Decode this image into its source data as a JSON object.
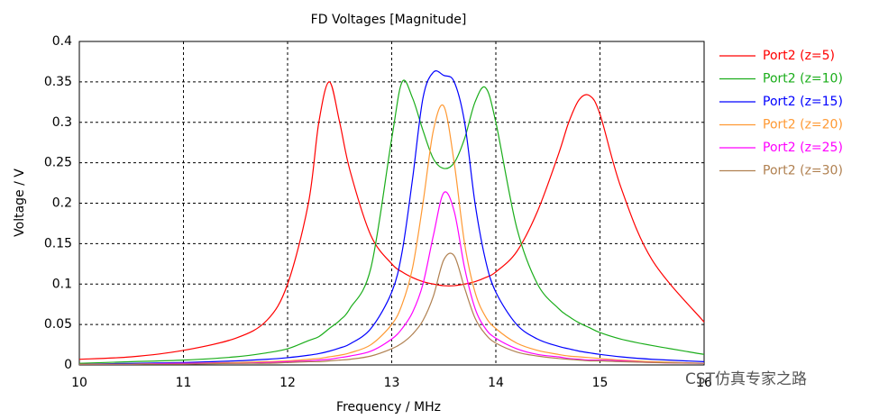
{
  "chart_data": {
    "type": "line",
    "title": "FD Voltages [Magnitude]",
    "xlabel": "Frequency / MHz",
    "ylabel": "Voltage / V",
    "x": [
      10,
      10.5,
      11,
      11.5,
      11.8,
      12,
      12.2,
      12.3,
      12.4,
      12.5,
      12.6,
      12.8,
      13,
      13.1,
      13.2,
      13.3,
      13.4,
      13.5,
      13.6,
      13.7,
      13.8,
      13.9,
      14,
      14.2,
      14.4,
      14.6,
      14.7,
      14.8,
      14.9,
      15,
      15.2,
      15.5,
      16
    ],
    "series": [
      {
        "name": "Port2 (z=5)",
        "color": "#ff0000",
        "values": [
          0.007,
          0.01,
          0.018,
          0.033,
          0.055,
          0.1,
          0.2,
          0.3,
          0.35,
          0.3,
          0.24,
          0.16,
          0.125,
          0.115,
          0.108,
          0.103,
          0.1,
          0.098,
          0.098,
          0.1,
          0.103,
          0.108,
          0.115,
          0.14,
          0.19,
          0.26,
          0.3,
          0.328,
          0.333,
          0.31,
          0.22,
          0.13,
          0.053
        ]
      },
      {
        "name": "Port2 (z=10)",
        "color": "#1aad1a",
        "values": [
          0.002,
          0.004,
          0.006,
          0.01,
          0.015,
          0.02,
          0.03,
          0.035,
          0.045,
          0.055,
          0.07,
          0.12,
          0.28,
          0.35,
          0.33,
          0.29,
          0.255,
          0.243,
          0.25,
          0.28,
          0.325,
          0.343,
          0.3,
          0.17,
          0.1,
          0.07,
          0.06,
          0.052,
          0.046,
          0.04,
          0.032,
          0.024,
          0.013
        ]
      },
      {
        "name": "Port2 (z=15)",
        "color": "#0000ff",
        "values": [
          0.001,
          0.002,
          0.003,
          0.005,
          0.007,
          0.009,
          0.012,
          0.014,
          0.017,
          0.021,
          0.026,
          0.045,
          0.09,
          0.14,
          0.23,
          0.33,
          0.362,
          0.358,
          0.35,
          0.3,
          0.2,
          0.13,
          0.09,
          0.05,
          0.032,
          0.023,
          0.02,
          0.017,
          0.015,
          0.013,
          0.01,
          0.007,
          0.004
        ]
      },
      {
        "name": "Port2 (z=20)",
        "color": "#ff9933",
        "values": [
          0.001,
          0.001,
          0.002,
          0.003,
          0.004,
          0.005,
          0.007,
          0.008,
          0.01,
          0.012,
          0.015,
          0.025,
          0.05,
          0.075,
          0.12,
          0.2,
          0.29,
          0.32,
          0.25,
          0.15,
          0.09,
          0.06,
          0.045,
          0.027,
          0.018,
          0.013,
          0.011,
          0.01,
          0.009,
          0.008,
          0.006,
          0.004,
          0.002
        ]
      },
      {
        "name": "Port2 (z=25)",
        "color": "#ff00ff",
        "values": [
          0.001,
          0.001,
          0.002,
          0.002,
          0.003,
          0.004,
          0.005,
          0.006,
          0.007,
          0.009,
          0.011,
          0.017,
          0.032,
          0.045,
          0.065,
          0.1,
          0.16,
          0.213,
          0.19,
          0.12,
          0.07,
          0.045,
          0.033,
          0.02,
          0.013,
          0.01,
          0.008,
          0.007,
          0.006,
          0.006,
          0.005,
          0.003,
          0.002
        ]
      },
      {
        "name": "Port2 (z=30)",
        "color": "#b08050",
        "values": [
          0.001,
          0.001,
          0.001,
          0.002,
          0.002,
          0.003,
          0.004,
          0.004,
          0.005,
          0.006,
          0.007,
          0.011,
          0.02,
          0.027,
          0.038,
          0.055,
          0.085,
          0.13,
          0.135,
          0.095,
          0.058,
          0.038,
          0.027,
          0.016,
          0.011,
          0.008,
          0.007,
          0.006,
          0.005,
          0.005,
          0.004,
          0.003,
          0.002
        ]
      }
    ],
    "xlim": [
      10,
      16
    ],
    "xticks": [
      10,
      11,
      12,
      13,
      14,
      15,
      16
    ],
    "ylim": [
      0,
      0.4
    ],
    "yticks": [
      0,
      0.05,
      0.1,
      0.15,
      0.2,
      0.25,
      0.3,
      0.35,
      0.4
    ],
    "grid": true,
    "legend": "right",
    "watermark": "CST仿真专家之路"
  }
}
